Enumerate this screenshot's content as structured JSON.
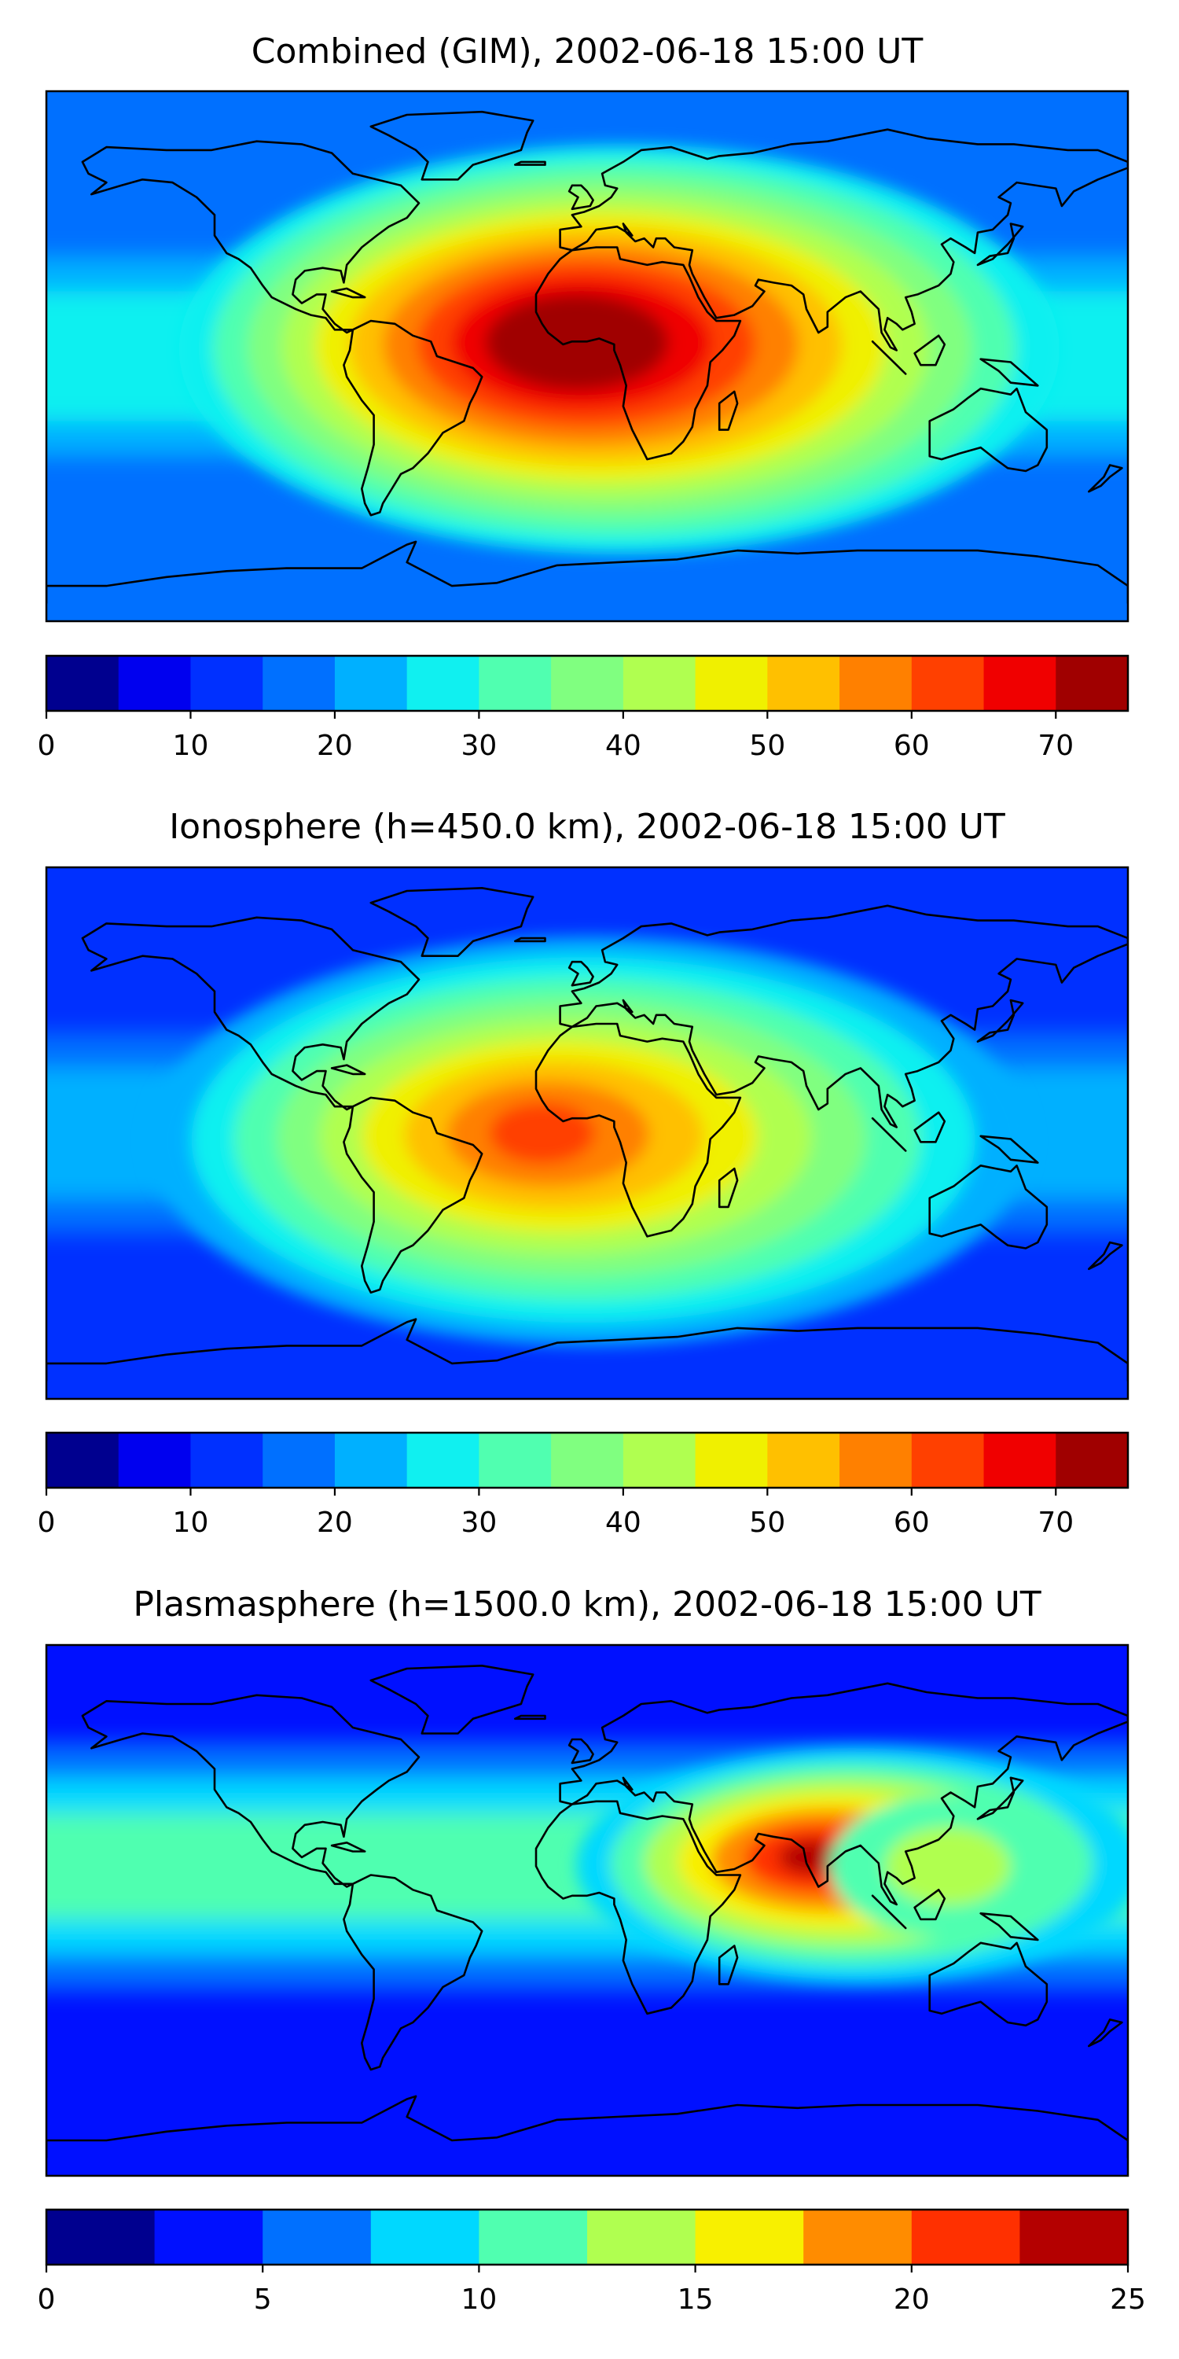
{
  "palette": [
    "#00008f",
    "#0000ef",
    "#0030ff",
    "#0070ff",
    "#00b0ff",
    "#10f0f0",
    "#50ffb0",
    "#80ff80",
    "#b0ff50",
    "#f0f000",
    "#ffc000",
    "#ff8000",
    "#ff4000",
    "#f00000",
    "#a00000"
  ],
  "palette10": [
    "#00008f",
    "#0010ff",
    "#0070ff",
    "#00d8ff",
    "#50ffb0",
    "#b0ff50",
    "#f8f000",
    "#ff8c00",
    "#ff3000",
    "#b40000"
  ],
  "ocean_color": "#0050ff",
  "coast_color": "#000000",
  "panels": [
    {
      "title": "Combined (GIM), 2002-06-18 15:00 UT",
      "colorbar": {
        "min": 0,
        "max": 75,
        "step": 5,
        "ticks": [
          0,
          10,
          20,
          30,
          40,
          50,
          60,
          70
        ],
        "tick_labels": [
          "0",
          "10",
          "20",
          "30",
          "40",
          "50",
          "60",
          "70"
        ]
      },
      "background_level": 3,
      "anomaly": {
        "lon": -5,
        "lat": 5,
        "peak_value": 70
      }
    },
    {
      "title": "Ionosphere  (h=450.0 km), 2002-06-18 15:00 UT",
      "colorbar": {
        "min": 0,
        "max": 75,
        "step": 5,
        "ticks": [
          0,
          10,
          20,
          30,
          40,
          50,
          60,
          70
        ],
        "tick_labels": [
          "0",
          "10",
          "20",
          "30",
          "40",
          "50",
          "60",
          "70"
        ]
      },
      "background_level": 2,
      "anomaly": {
        "lon": -15,
        "lat": 0,
        "peak_value": 55
      }
    },
    {
      "title": "Plasmasphere (h=1500.0 km), 2002-06-18 15:00 UT",
      "colorbar": {
        "min": 0,
        "max": 25,
        "step": 2.5,
        "ticks": [
          0,
          5,
          10,
          15,
          20,
          25
        ],
        "tick_labels": [
          "0",
          "5",
          "10",
          "15",
          "20",
          "25"
        ]
      },
      "background_level": 1,
      "anomaly": {
        "lon": 75,
        "lat": 18,
        "peak_value": 22
      }
    }
  ]
}
